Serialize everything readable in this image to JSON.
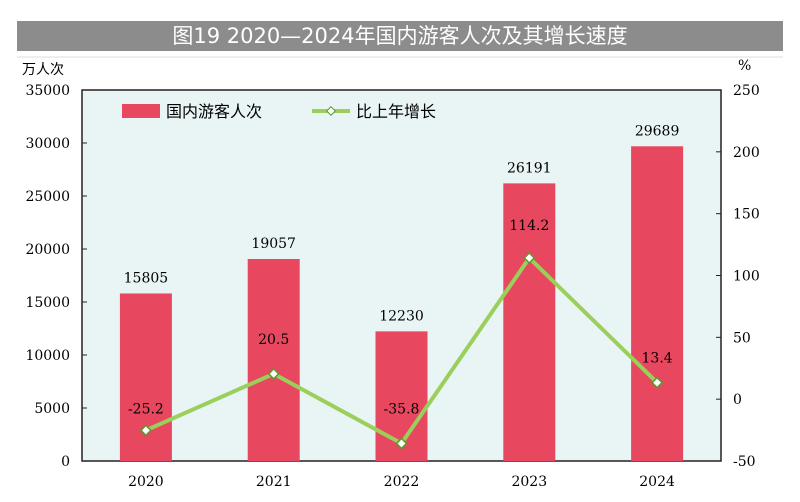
{
  "chart_data": {
    "type": "bar+line",
    "title": "图19  2020—2024年国内游客人次及其增长速度",
    "categories": [
      "2020",
      "2021",
      "2022",
      "2023",
      "2024"
    ],
    "series": [
      {
        "name": "国内游客人次",
        "type": "bar",
        "axis": "left",
        "values": [
          15805,
          19057,
          12230,
          26191,
          29689
        ],
        "labels": [
          "15805",
          "19057",
          "12230",
          "26191",
          "29689"
        ]
      },
      {
        "name": "比上年增长",
        "type": "line",
        "axis": "right",
        "values": [
          -25.2,
          20.5,
          -35.8,
          114.2,
          13.4
        ],
        "labels": [
          "-25.2",
          "20.5",
          "-35.8",
          "114.2",
          "13.4"
        ]
      }
    ],
    "ylabel_left": "万人次",
    "ylabel_right": "%",
    "ylim_left": [
      0,
      35000
    ],
    "yticks_left": [
      "0",
      "5000",
      "10000",
      "15000",
      "20000",
      "25000",
      "30000",
      "35000"
    ],
    "ylim_right": [
      -50,
      250
    ],
    "yticks_right": [
      "-50",
      "0",
      "50",
      "100",
      "150",
      "200",
      "250"
    ],
    "legend": "top-left",
    "grid": false,
    "colors": {
      "bar": "#e8485f",
      "line": "#9bcf5b",
      "plot_bg": "#e9f4f4",
      "title_bg": "#8c8c8c"
    }
  }
}
